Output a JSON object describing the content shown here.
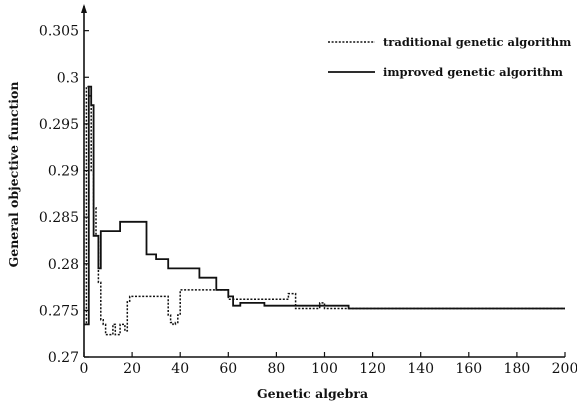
{
  "chart_data": {
    "type": "line",
    "xlabel": "Genetic algebra",
    "ylabel": "General objective function",
    "xlim": [
      0,
      200
    ],
    "ylim": [
      0.27,
      0.307
    ],
    "x_ticks": [
      0,
      20,
      40,
      60,
      80,
      100,
      120,
      140,
      160,
      180,
      200
    ],
    "x_tick_labels": [
      "0",
      "20",
      "40",
      "60",
      "80",
      "100",
      "120",
      "140",
      "160",
      "180",
      "200"
    ],
    "y_ticks": [
      0.27,
      0.275,
      0.28,
      0.285,
      0.29,
      0.295,
      0.3,
      0.305
    ],
    "y_tick_labels": [
      "0.27",
      "0.275",
      "0.28",
      "0.285",
      "0.29",
      "0.295",
      "0.3",
      "0.305"
    ],
    "grid": false,
    "legend_position": "top-right",
    "series": [
      {
        "name": "traditional genetic algorithm",
        "style": "dotted",
        "color": "#111111",
        "x": [
          0,
          1,
          2,
          3,
          4,
          5,
          6,
          7,
          8,
          9,
          10,
          11,
          12,
          13,
          14,
          15,
          16,
          17,
          18,
          19,
          20,
          22,
          25,
          30,
          34,
          35,
          36,
          37,
          38,
          39,
          40,
          45,
          50,
          55,
          60,
          62,
          65,
          70,
          75,
          80,
          84,
          85,
          86,
          87,
          88,
          90,
          95,
          98,
          100,
          105,
          110,
          120,
          130,
          140,
          150,
          160,
          170,
          180,
          190,
          200
        ],
        "y": [
          0.2735,
          0.299,
          0.298,
          0.29,
          0.286,
          0.283,
          0.278,
          0.274,
          0.2735,
          0.2724,
          0.2724,
          0.2724,
          0.2735,
          0.2724,
          0.2724,
          0.2735,
          0.2735,
          0.2728,
          0.276,
          0.2765,
          0.2765,
          0.2765,
          0.2765,
          0.2765,
          0.2765,
          0.2745,
          0.2737,
          0.2735,
          0.2737,
          0.2745,
          0.2772,
          0.2772,
          0.2772,
          0.2772,
          0.2762,
          0.2762,
          0.2762,
          0.2762,
          0.2762,
          0.2762,
          0.2762,
          0.2768,
          0.2768,
          0.2768,
          0.2752,
          0.2752,
          0.2752,
          0.2758,
          0.2752,
          0.2752,
          0.2752,
          0.2752,
          0.2752,
          0.2752,
          0.2752,
          0.2752,
          0.2752,
          0.2752,
          0.2752,
          0.2752
        ]
      },
      {
        "name": "improved genetic algorithm",
        "style": "solid",
        "color": "#111111",
        "x": [
          0,
          1,
          2,
          3,
          4,
          5,
          6,
          7,
          8,
          10,
          12,
          14,
          15,
          16,
          17,
          18,
          20,
          22,
          24,
          25,
          26,
          30,
          34,
          35,
          36,
          40,
          45,
          48,
          50,
          52,
          55,
          58,
          60,
          62,
          65,
          70,
          75,
          80,
          85,
          90,
          95,
          100,
          110,
          120,
          130,
          140,
          150,
          160,
          170,
          180,
          190,
          200
        ],
        "y": [
          0.2735,
          0.2735,
          0.299,
          0.297,
          0.283,
          0.283,
          0.2795,
          0.2835,
          0.2835,
          0.2835,
          0.2835,
          0.2835,
          0.2845,
          0.2845,
          0.2845,
          0.2845,
          0.2845,
          0.2845,
          0.2845,
          0.2845,
          0.281,
          0.2805,
          0.2805,
          0.2795,
          0.2795,
          0.2795,
          0.2795,
          0.2785,
          0.2785,
          0.2785,
          0.2772,
          0.2772,
          0.2765,
          0.2755,
          0.2758,
          0.2758,
          0.2755,
          0.2755,
          0.2755,
          0.2755,
          0.2755,
          0.2755,
          0.2752,
          0.2752,
          0.2752,
          0.2752,
          0.2752,
          0.2752,
          0.2752,
          0.2752,
          0.2752,
          0.2752
        ]
      }
    ]
  }
}
